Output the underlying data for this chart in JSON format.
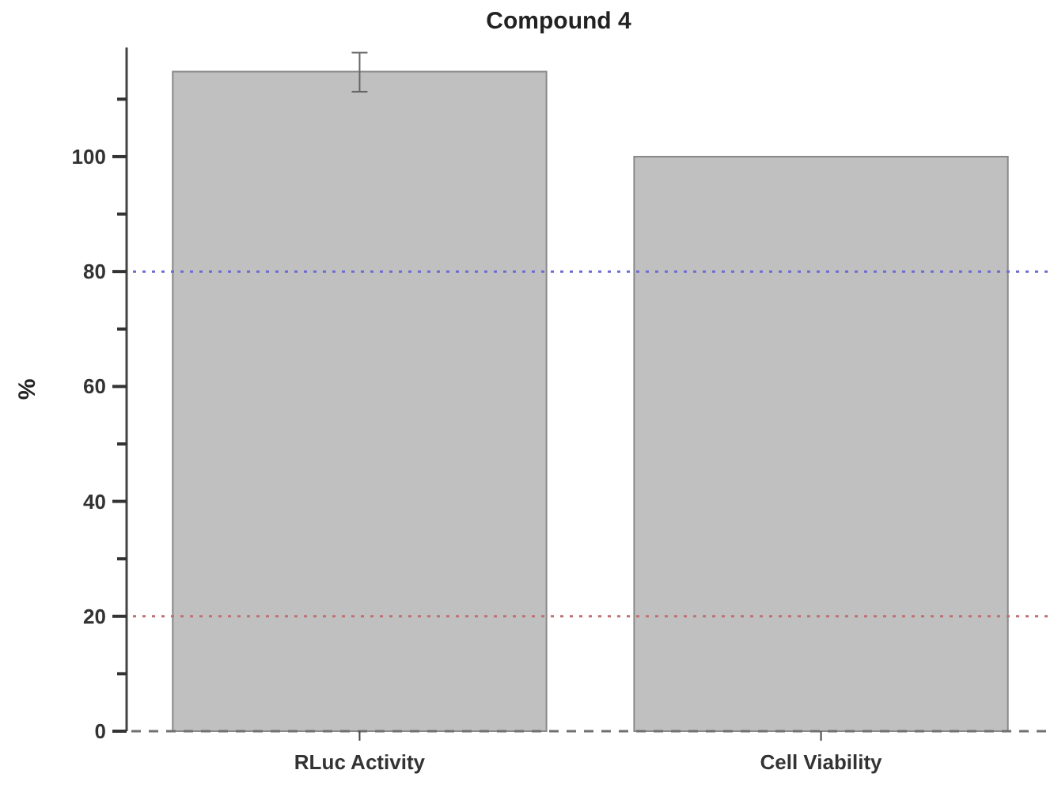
{
  "chart_data": {
    "type": "bar",
    "title": "Compound 4",
    "ylabel": "%",
    "categories": [
      "RLuc Activity",
      "Cell Viability"
    ],
    "values": [
      114.8,
      100
    ],
    "color": "#c0c0c0",
    "errors": [
      [
        111.3,
        118.1
      ],
      null
    ],
    "ylim": [
      0,
      119
    ],
    "yticks": [
      0,
      {
        "value": 10,
        "label": null
      },
      20,
      {
        "value": 30,
        "label": null
      },
      40,
      {
        "value": 50,
        "label": null
      },
      60,
      {
        "value": 70,
        "label": null
      },
      80,
      {
        "value": 90,
        "label": null
      },
      100,
      {
        "value": 110,
        "label": null
      }
    ],
    "ref_lines": [
      {
        "axis": "y",
        "value": 80,
        "color": "#6b6bd6",
        "line_style": "dotted"
      },
      {
        "axis": "y",
        "value": 20,
        "color": "#c07070",
        "line_style": "dotted"
      },
      {
        "axis": "y",
        "value": 0,
        "color": "#707070",
        "line_style": "dashed"
      }
    ],
    "grid": false
  }
}
